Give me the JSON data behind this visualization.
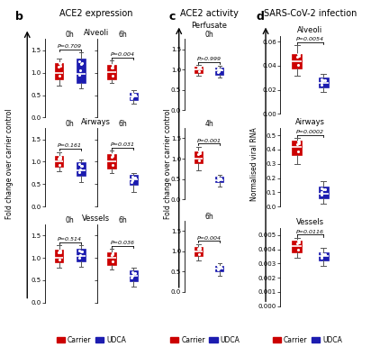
{
  "panel_b_title": "ACE2 expression",
  "panel_c_title": "ACE2 activity",
  "panel_d_title": "SARS-CoV-2 infection",
  "panel_b_ylabel": "Fold change over carrier control",
  "panel_c_ylabel": "Fold change over carrier control",
  "panel_d_ylabel": "Normalised viral RNA",
  "panel_c_subtitle": "Perfusate",
  "carrier_color": "#CC0000",
  "udca_color": "#1C1CB0",
  "b_alveoli_0h_carrier": {
    "q1": 0.85,
    "med": 1.0,
    "q3": 1.22,
    "whislo": 0.72,
    "whishi": 1.32
  },
  "b_alveoli_0h_udca": {
    "q1": 0.78,
    "med": 0.98,
    "q3": 1.32,
    "whislo": 0.65,
    "whishi": 1.45
  },
  "b_alveoli_6h_carrier": {
    "q1": 0.85,
    "med": 1.02,
    "q3": 1.18,
    "whislo": 0.78,
    "whishi": 1.27
  },
  "b_alveoli_6h_udca": {
    "q1": 0.38,
    "med": 0.48,
    "q3": 0.55,
    "whislo": 0.3,
    "whishi": 0.62
  },
  "b_alveoli_0h_pval": "P=0.709",
  "b_alveoli_6h_pval": "P=0.004",
  "b_airways_0h_carrier": {
    "q1": 0.88,
    "med": 1.0,
    "q3": 1.12,
    "whislo": 0.78,
    "whishi": 1.22
  },
  "b_airways_0h_udca": {
    "q1": 0.68,
    "med": 0.8,
    "q3": 0.98,
    "whislo": 0.55,
    "whishi": 1.05
  },
  "b_airways_6h_carrier": {
    "q1": 0.85,
    "med": 1.0,
    "q3": 1.18,
    "whislo": 0.75,
    "whishi": 1.25
  },
  "b_airways_6h_udca": {
    "q1": 0.48,
    "med": 0.6,
    "q3": 0.7,
    "whislo": 0.32,
    "whishi": 0.75
  },
  "b_airways_0h_pval": "P=0.161",
  "b_airways_6h_pval": "P=0.031",
  "b_vessels_0h_carrier": {
    "q1": 0.9,
    "med": 1.0,
    "q3": 1.18,
    "whislo": 0.78,
    "whishi": 1.28
  },
  "b_vessels_0h_udca": {
    "q1": 0.92,
    "med": 1.05,
    "q3": 1.2,
    "whislo": 0.8,
    "whishi": 1.28
  },
  "b_vessels_6h_carrier": {
    "q1": 0.85,
    "med": 1.0,
    "q3": 1.12,
    "whislo": 0.75,
    "whishi": 1.2
  },
  "b_vessels_6h_udca": {
    "q1": 0.48,
    "med": 0.6,
    "q3": 0.72,
    "whislo": 0.35,
    "whishi": 0.78
  },
  "b_vessels_0h_pval": "P=0.514",
  "b_vessels_6h_pval": "P=0.036",
  "c_0h_carrier": {
    "q1": 0.92,
    "med": 1.0,
    "q3": 1.08,
    "whislo": 0.85,
    "whishi": 1.12
  },
  "c_0h_udca": {
    "q1": 0.88,
    "med": 0.98,
    "q3": 1.05,
    "whislo": 0.8,
    "whishi": 1.1
  },
  "c_0h_pval": "P>0.999",
  "c_4h_carrier": {
    "q1": 0.88,
    "med": 1.0,
    "q3": 1.18,
    "whislo": 0.72,
    "whishi": 1.3
  },
  "c_4h_udca": {
    "q1": 0.42,
    "med": 0.48,
    "q3": 0.55,
    "whislo": 0.32,
    "whishi": 0.6
  },
  "c_4h_pval": "P=0.001",
  "c_6h_carrier": {
    "q1": 0.88,
    "med": 1.0,
    "q3": 1.1,
    "whislo": 0.78,
    "whishi": 1.18
  },
  "c_6h_udca": {
    "q1": 0.5,
    "med": 0.58,
    "q3": 0.65,
    "whislo": 0.4,
    "whishi": 0.7
  },
  "c_6h_pval": "P=0.004",
  "d_alveoli_carrier": {
    "q1": 0.038,
    "med": 0.044,
    "q3": 0.05,
    "whislo": 0.032,
    "whishi": 0.057
  },
  "d_alveoli_udca": {
    "q1": 0.022,
    "med": 0.026,
    "q3": 0.03,
    "whislo": 0.018,
    "whishi": 0.033
  },
  "d_alveoli_pval": "P=0.0054",
  "d_airways_carrier": {
    "q1": 0.36,
    "med": 0.42,
    "q3": 0.46,
    "whislo": 0.3,
    "whishi": 0.48
  },
  "d_airways_udca": {
    "q1": 0.06,
    "med": 0.09,
    "q3": 0.14,
    "whislo": 0.02,
    "whishi": 0.18
  },
  "d_airways_pval": "P=0.0002",
  "d_vessels_carrier": {
    "q1": 0.0038,
    "med": 0.0042,
    "q3": 0.0046,
    "whislo": 0.0034,
    "whishi": 0.0048
  },
  "d_vessels_udca": {
    "q1": 0.0032,
    "med": 0.0035,
    "q3": 0.0038,
    "whislo": 0.0028,
    "whishi": 0.0041
  },
  "d_vessels_pval": "P=0.0116"
}
